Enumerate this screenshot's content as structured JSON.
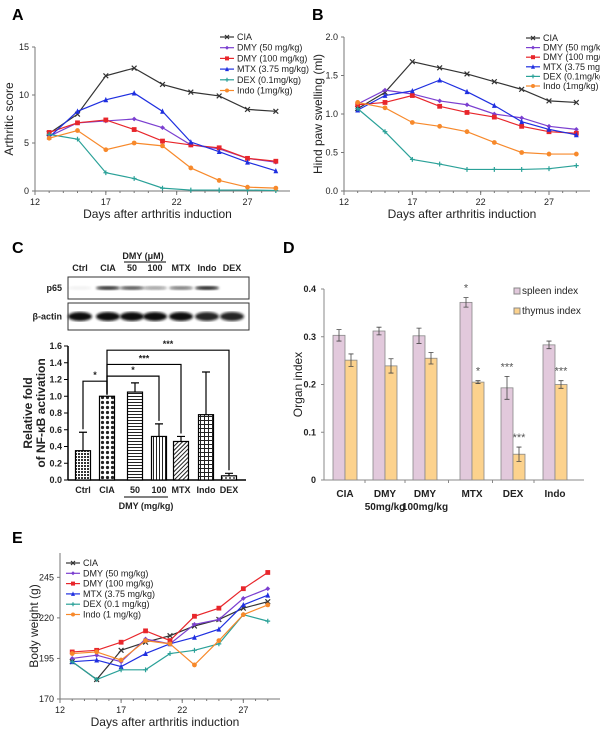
{
  "panels": {
    "A": "A",
    "B": "B",
    "C": "C",
    "D": "D",
    "E": "E"
  },
  "chart_data": [
    {
      "panel": "A",
      "type": "line",
      "xlabel": "Days after arthritis induction",
      "ylabel": "Arthritic score",
      "xlim": [
        12,
        30
      ],
      "ylim": [
        0,
        15
      ],
      "xticks": [
        12,
        17,
        22,
        27
      ],
      "yticks": [
        0,
        5,
        10,
        15
      ],
      "legend": "top-right",
      "grid": false,
      "x": [
        13,
        15,
        17,
        19,
        21,
        23,
        25,
        27,
        29
      ],
      "series": [
        {
          "name": "CIA",
          "color": "#333333",
          "marker": "x",
          "values": [
            6.0,
            8.0,
            12.0,
            12.8,
            11.1,
            10.3,
            9.9,
            8.5,
            8.3
          ]
        },
        {
          "name": "DMY (50 mg/kg)",
          "color": "#7b3fd0",
          "marker": "diamond",
          "values": [
            5.7,
            7.1,
            7.3,
            7.5,
            6.6,
            4.8,
            4.4,
            3.4,
            3.0
          ]
        },
        {
          "name": "DMY (100 mg/kg)",
          "color": "#e8262b",
          "marker": "square",
          "values": [
            6.1,
            7.1,
            7.4,
            6.4,
            5.2,
            4.8,
            4.5,
            3.4,
            3.1
          ]
        },
        {
          "name": "MTX (3.75 mg/kg)",
          "color": "#1f2fe0",
          "marker": "triangle",
          "values": [
            5.6,
            8.3,
            9.5,
            10.2,
            8.3,
            5.1,
            4.1,
            3.0,
            2.1
          ]
        },
        {
          "name": "DEX (0.1mg/kg)",
          "color": "#2aa198",
          "marker": "plus",
          "values": [
            5.9,
            5.4,
            1.9,
            1.3,
            0.3,
            0.1,
            0.1,
            0.1,
            0.05
          ]
        },
        {
          "name": "Indo (1mg/kg)",
          "color": "#f7892b",
          "marker": "circle",
          "values": [
            5.5,
            6.3,
            4.3,
            5.0,
            4.7,
            2.4,
            1.1,
            0.4,
            0.3
          ]
        }
      ]
    },
    {
      "panel": "B",
      "type": "line",
      "xlabel": "Days after arthritis induction",
      "ylabel": "Hind paw swelling (ml)",
      "xlim": [
        12,
        30
      ],
      "ylim": [
        0,
        2
      ],
      "xticks": [
        12,
        17,
        22,
        27
      ],
      "yticks": [
        "0.0",
        "0.5",
        "1.0",
        "1.5",
        "2.0"
      ],
      "legend": "top-right",
      "grid": false,
      "x": [
        13,
        15,
        17,
        19,
        21,
        23,
        25,
        27,
        29
      ],
      "series": [
        {
          "name": "CIA",
          "color": "#333333",
          "marker": "x",
          "values": [
            1.07,
            1.28,
            1.68,
            1.6,
            1.52,
            1.42,
            1.32,
            1.17,
            1.15
          ]
        },
        {
          "name": "DMY (50 mg/kg)",
          "color": "#7b3fd0",
          "marker": "diamond",
          "values": [
            1.13,
            1.31,
            1.26,
            1.17,
            1.12,
            1.0,
            0.95,
            0.84,
            0.8
          ]
        },
        {
          "name": "DMY (100 mg/kg)",
          "color": "#e8262b",
          "marker": "square",
          "values": [
            1.12,
            1.15,
            1.24,
            1.1,
            1.02,
            0.96,
            0.84,
            0.77,
            0.75
          ]
        },
        {
          "name": "MTX (3.75 mg/kg)",
          "color": "#1f2fe0",
          "marker": "triangle",
          "values": [
            1.05,
            1.24,
            1.3,
            1.44,
            1.29,
            1.11,
            0.9,
            0.8,
            0.73
          ]
        },
        {
          "name": "DEX (0.1mg/kg)",
          "color": "#2aa198",
          "marker": "plus",
          "values": [
            1.07,
            0.77,
            0.41,
            0.35,
            0.28,
            0.28,
            0.28,
            0.29,
            0.33
          ]
        },
        {
          "name": "Indo (1mg/kg)",
          "color": "#f7892b",
          "marker": "circle",
          "values": [
            1.15,
            1.08,
            0.89,
            0.84,
            0.77,
            0.63,
            0.5,
            0.48,
            0.48
          ]
        }
      ]
    },
    {
      "panel": "C",
      "type": "bar",
      "blot": {
        "group_label": "DMY (μM)",
        "lanes": [
          "Ctrl",
          "CIA",
          "50",
          "100",
          "MTX",
          "Indo",
          "DEX"
        ],
        "rows": [
          {
            "label": "p65",
            "band_intensity": [
              0.05,
              0.85,
              0.7,
              0.4,
              0.55,
              0.9,
              0
            ]
          },
          {
            "label": "β-actin",
            "band_intensity": [
              1,
              1,
              1,
              1,
              1,
              0.9,
              0.9
            ]
          }
        ]
      },
      "ylabel_lines": [
        "Relative fold",
        "of NF-κB activation"
      ],
      "ylim": [
        0,
        1.6
      ],
      "yticks": [
        "0.0",
        "0.2",
        "0.4",
        "0.6",
        "0.8",
        "1.0",
        "1.2",
        "1.4",
        "1.6"
      ],
      "categories": [
        "Ctrl",
        "CIA",
        "50",
        "100",
        "MTX",
        "Indo",
        "DEX"
      ],
      "values": [
        0.35,
        1.0,
        1.05,
        0.52,
        0.46,
        0.78,
        0.05
      ],
      "errors": [
        0.22,
        0,
        0.11,
        0.15,
        0.06,
        0.51,
        0.03
      ],
      "group_label": "DMY (mg/kg)",
      "significance": [
        {
          "from": "Ctrl",
          "to": "CIA",
          "level": 1.18,
          "label": "*"
        },
        {
          "from": "CIA",
          "to": "100",
          "level": 1.24,
          "label": "*"
        },
        {
          "from": "CIA",
          "to": "MTX",
          "level": 1.38,
          "label": "***"
        },
        {
          "from": "CIA",
          "to": "DEX",
          "level": 1.55,
          "label": "***"
        }
      ]
    },
    {
      "panel": "D",
      "type": "bar",
      "ylabel": "Organ index",
      "ylim": [
        0,
        0.4
      ],
      "yticks": [
        "0",
        "0.1",
        "0.2",
        "0.3",
        "0.4"
      ],
      "legend": "top-right",
      "categories": [
        [
          "CIA"
        ],
        [
          "DMY",
          "50mg/kg"
        ],
        [
          "DMY",
          "100mg/kg"
        ],
        [
          "MTX"
        ],
        [
          "DEX"
        ],
        [
          "Indo"
        ]
      ],
      "series": [
        {
          "name": "spleen index",
          "color": "#e2c9dc",
          "values": [
            0.303,
            0.312,
            0.302,
            0.372,
            0.193,
            0.283
          ],
          "errors": [
            0.012,
            0.008,
            0.016,
            0.01,
            0.024,
            0.008
          ],
          "stars": [
            "",
            "",
            "",
            "*",
            "***",
            ""
          ]
        },
        {
          "name": "thymus index",
          "color": "#fcd28d",
          "values": [
            0.251,
            0.239,
            0.255,
            0.205,
            0.054,
            0.2
          ],
          "errors": [
            0.013,
            0.015,
            0.012,
            0.003,
            0.015,
            0.008
          ],
          "stars": [
            "",
            "",
            "",
            "*",
            "***",
            "***"
          ]
        }
      ]
    },
    {
      "panel": "E",
      "type": "line",
      "xlabel": "Days after arthritis induction",
      "ylabel": "Body weight (g)",
      "xlim": [
        12,
        30
      ],
      "ylim": [
        170,
        260
      ],
      "xticks": [
        12,
        17,
        22,
        27
      ],
      "yticks": [
        170,
        195,
        220,
        245
      ],
      "legend": "top-left",
      "grid": false,
      "x": [
        13,
        15,
        17,
        19,
        21,
        23,
        25,
        27,
        29
      ],
      "series": [
        {
          "name": "CIA",
          "color": "#333333",
          "marker": "x",
          "values": [
            193,
            182,
            200,
            205,
            209,
            215,
            219,
            226,
            230
          ]
        },
        {
          "name": "DMY (50 mg/kg)",
          "color": "#7b3fd0",
          "marker": "diamond",
          "values": [
            195,
            197,
            193,
            207,
            204,
            216,
            219,
            232,
            238
          ]
        },
        {
          "name": "DMY (100 mg/kg)",
          "color": "#e8262b",
          "marker": "square",
          "values": [
            199,
            200,
            205,
            212,
            206,
            221,
            226,
            238,
            248
          ]
        },
        {
          "name": "MTX (3.75 mg/kg)",
          "color": "#1f2fe0",
          "marker": "triangle",
          "values": [
            193,
            194,
            190,
            198,
            204,
            208,
            213,
            228,
            234
          ]
        },
        {
          "name": "DEX (0.1 mg/kg)",
          "color": "#2aa198",
          "marker": "plus",
          "values": [
            193,
            182,
            188,
            188,
            198,
            200,
            204,
            222,
            218
          ]
        },
        {
          "name": "Indo (1 mg/kg)",
          "color": "#f7892b",
          "marker": "circle",
          "values": [
            198,
            199,
            194,
            206,
            204,
            191,
            206,
            222,
            228
          ]
        }
      ]
    }
  ]
}
